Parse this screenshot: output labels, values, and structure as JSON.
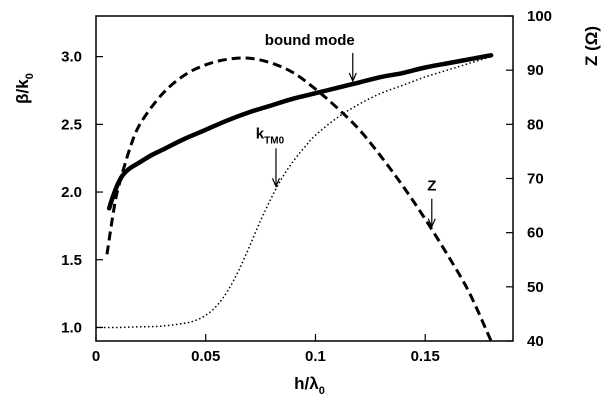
{
  "chart_data": {
    "type": "line",
    "title": "",
    "xlabel": {
      "main": "h/λ",
      "sub": "0"
    },
    "ylabel_left": {
      "main": "β/k",
      "sub": "0"
    },
    "ylabel_right": {
      "main": "Z (Ω)",
      "sub": ""
    },
    "xlim": [
      0,
      0.19
    ],
    "ylim_left": [
      0.9,
      3.3
    ],
    "ylim_right": [
      40,
      100
    ],
    "x_ticks": [
      0,
      0.05,
      0.1,
      0.15
    ],
    "x_tick_labels": [
      "0",
      "0.05",
      "0.1",
      "0.15"
    ],
    "y_left_ticks": [
      1.0,
      1.5,
      2.0,
      2.5,
      3.0
    ],
    "y_left_tick_labels": [
      "1.0",
      "1.5",
      "2.0",
      "2.5",
      "3.0"
    ],
    "y_right_ticks": [
      40,
      50,
      60,
      70,
      80,
      90,
      100
    ],
    "y_right_tick_labels": [
      "40",
      "50",
      "60",
      "70",
      "80",
      "90",
      "100"
    ],
    "grid": false,
    "series": [
      {
        "name": "bound mode",
        "axis": "left",
        "style": "solid-thick",
        "x": [
          0.006,
          0.008,
          0.01,
          0.012,
          0.015,
          0.02,
          0.025,
          0.03,
          0.04,
          0.05,
          0.06,
          0.07,
          0.08,
          0.09,
          0.1,
          0.11,
          0.12,
          0.13,
          0.14,
          0.15,
          0.16,
          0.17,
          0.18
        ],
        "y": [
          1.88,
          1.98,
          2.06,
          2.12,
          2.17,
          2.22,
          2.27,
          2.31,
          2.39,
          2.46,
          2.53,
          2.59,
          2.64,
          2.69,
          2.73,
          2.77,
          2.81,
          2.85,
          2.88,
          2.92,
          2.95,
          2.98,
          3.01
        ]
      },
      {
        "name": "k",
        "name_sub": "TM0",
        "axis": "left",
        "style": "dotted",
        "x": [
          0,
          0.01,
          0.02,
          0.03,
          0.04,
          0.045,
          0.05,
          0.055,
          0.06,
          0.065,
          0.07,
          0.075,
          0.08,
          0.085,
          0.09,
          0.095,
          0.1,
          0.11,
          0.12,
          0.13,
          0.14,
          0.15,
          0.16,
          0.17,
          0.18
        ],
        "y": [
          1.0,
          1.0,
          1.005,
          1.01,
          1.03,
          1.05,
          1.09,
          1.16,
          1.27,
          1.42,
          1.6,
          1.79,
          1.96,
          2.11,
          2.23,
          2.33,
          2.42,
          2.55,
          2.65,
          2.73,
          2.79,
          2.85,
          2.9,
          2.95,
          3.0
        ]
      },
      {
        "name": "Z",
        "axis": "right",
        "style": "dashed",
        "x": [
          0.005,
          0.008,
          0.01,
          0.015,
          0.02,
          0.03,
          0.04,
          0.05,
          0.06,
          0.07,
          0.08,
          0.09,
          0.1,
          0.11,
          0.12,
          0.13,
          0.14,
          0.15,
          0.16,
          0.17,
          0.18
        ],
        "y": [
          56,
          64,
          68,
          75,
          80,
          85.5,
          89,
          91,
          92,
          92.2,
          91.3,
          89.5,
          86.5,
          83,
          79,
          74,
          68.5,
          62.5,
          56,
          49,
          40
        ]
      }
    ],
    "annotations": [
      {
        "label": "bound mode",
        "sub": "",
        "series": 0,
        "x": 0.117
      },
      {
        "label": "k",
        "sub": "TM0",
        "series": 1,
        "x": 0.082
      },
      {
        "label": "Z",
        "sub": "",
        "series": 2,
        "x": 0.153
      }
    ]
  }
}
